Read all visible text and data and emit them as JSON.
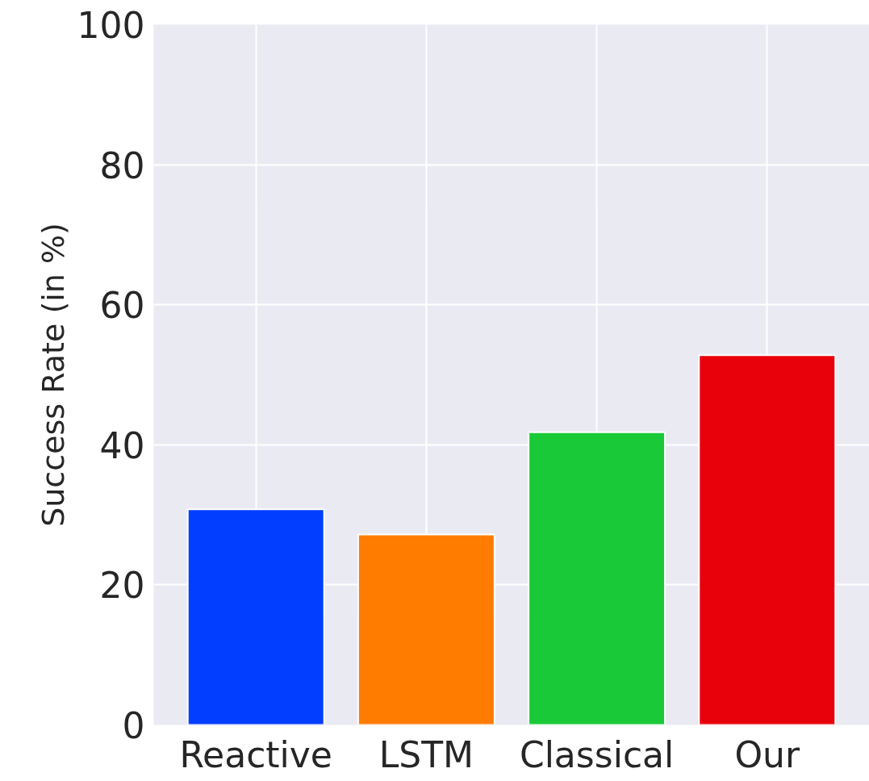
{
  "chart_data": {
    "type": "bar",
    "ylabel": "Success Rate (in %)",
    "categories": [
      "Reactive",
      "LSTM",
      "Classical",
      "Our"
    ],
    "values": [
      30.8,
      27.2,
      41.8,
      52.8
    ],
    "colors": [
      "#023eff",
      "#ff7c00",
      "#1ac938",
      "#e8000b"
    ],
    "ylim": [
      0,
      100
    ],
    "yticks": [
      0,
      20,
      40,
      60,
      80,
      100
    ],
    "grid": true
  }
}
